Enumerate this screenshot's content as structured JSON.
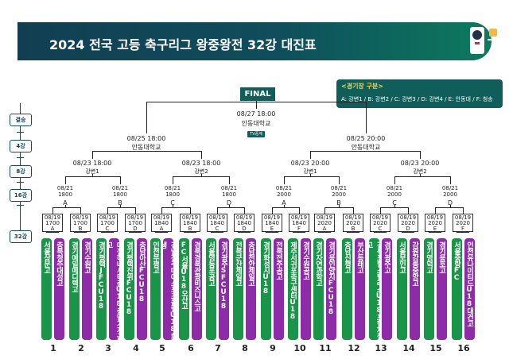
{
  "header": {
    "title": "2024 전국 고등 축구리그 왕중왕전 32강 대진표"
  },
  "final_label": "FINAL",
  "legend": {
    "title": "<경기장 구분>",
    "items": "A: 강변1 / B: 강변2 / C: 강변3 / D: 강변4 / E: 안동대 / F: 청송"
  },
  "rounds": {
    "final": "결승",
    "r4": "4강",
    "r8": "8강",
    "r16": "16강",
    "r32": "32강"
  },
  "final_match": {
    "time": "08/27 18:00",
    "venue": "안동대학교",
    "tv": "TV중계"
  },
  "semis": [
    {
      "time": "08/25 18:00",
      "venue": "안동대학교"
    },
    {
      "time": "08/25 20:00",
      "venue": "안동대학교"
    }
  ],
  "quarters": [
    {
      "time": "08/23 18:00",
      "venue": "강변1"
    },
    {
      "time": "08/23 18:00",
      "venue": "강변2"
    },
    {
      "time": "08/23 20:00",
      "venue": "강변1"
    },
    {
      "time": "08/23 20:00",
      "venue": "강변2"
    }
  ],
  "r16": [
    {
      "date": "08/21",
      "time": "1800",
      "venue": "A"
    },
    {
      "date": "08/21",
      "time": "1800",
      "venue": "B"
    },
    {
      "date": "08/21",
      "time": "1800",
      "venue": "C"
    },
    {
      "date": "08/21",
      "time": "1800",
      "venue": "D"
    },
    {
      "date": "08/21",
      "time": "2000",
      "venue": "A"
    },
    {
      "date": "08/21",
      "time": "2000",
      "venue": "B"
    },
    {
      "date": "08/21",
      "time": "2000",
      "venue": "C"
    },
    {
      "date": "08/21",
      "time": "2000",
      "venue": "D"
    }
  ],
  "r32": [
    {
      "date": "08/19",
      "time": "1700",
      "venue": "A"
    },
    {
      "date": "08/19",
      "time": "1700",
      "venue": "B"
    },
    {
      "date": "08/19",
      "time": "1700",
      "venue": "C"
    },
    {
      "date": "08/19",
      "time": "1700",
      "venue": "D"
    },
    {
      "date": "08/19",
      "time": "1840",
      "venue": "A"
    },
    {
      "date": "08/19",
      "time": "1840",
      "venue": "B"
    },
    {
      "date": "08/19",
      "time": "1840",
      "venue": "C"
    },
    {
      "date": "08/19",
      "time": "1840",
      "venue": "D"
    },
    {
      "date": "08/19",
      "time": "1840",
      "venue": "E"
    },
    {
      "date": "08/19",
      "time": "1840",
      "venue": "F"
    },
    {
      "date": "08/19",
      "time": "2020",
      "venue": "A"
    },
    {
      "date": "08/19",
      "time": "2020",
      "venue": "B"
    },
    {
      "date": "08/19",
      "time": "2020",
      "venue": "C"
    },
    {
      "date": "08/19",
      "time": "2020",
      "venue": "D"
    },
    {
      "date": "08/19",
      "time": "2020",
      "venue": "E"
    },
    {
      "date": "08/19",
      "time": "2020",
      "venue": "F"
    }
  ],
  "teams": [
    "서울상문고",
    "충북청주대성고",
    "경기예일메디텍고",
    "경기수원고",
    "경기평택JFCU18",
    "대전하나시티즌U18충남기계공고",
    "경기평택진위FCU18",
    "충남아산FCU18",
    "인천부평고",
    "경남진주대아스포츠클럽U18화생",
    "FC서울U18오산고",
    "경북경북관광비즈니스고",
    "서울영등포공고",
    "경기광주SFCU18",
    "전북군산제일고",
    "충남천안제일고",
    "경기화성시U18",
    "전북전주공고",
    "제주서귀포축구센터U18",
    "경기수원공고",
    "경기자연과학고",
    "경기용인양지FCU18",
    "충남신평고",
    "부산동래고",
    "경북포항스틸러스U18포항제철고",
    "경기광주고",
    "서울보인고",
    "강원강릉중앙고",
    "경기영덕고",
    "경기용호고",
    "서울중랑FC",
    "인천유나이티드U18대건고"
  ],
  "match_numbers": [
    "1",
    "2",
    "3",
    "4",
    "5",
    "6",
    "7",
    "8",
    "9",
    "10",
    "11",
    "12",
    "13",
    "14",
    "15",
    "16"
  ],
  "colors": {
    "header_bg": "#123e52",
    "accent": "#0f5e5a",
    "team_green": "#1a9448",
    "team_purple": "#8d2ba8"
  }
}
